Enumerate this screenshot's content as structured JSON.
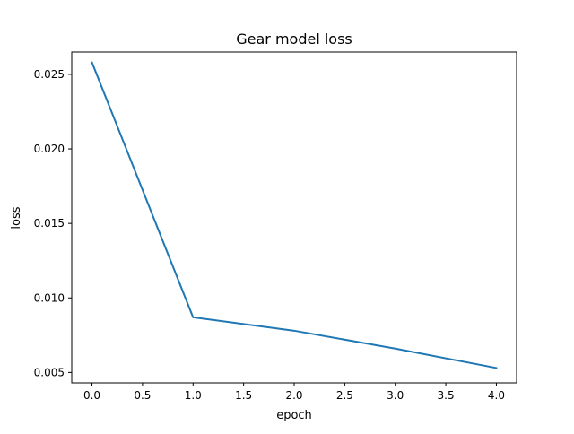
{
  "chart_data": {
    "type": "line",
    "title": "Gear model loss",
    "xlabel": "epoch",
    "ylabel": "loss",
    "xlim": [
      -0.2,
      4.2
    ],
    "ylim": [
      0.0043,
      0.0265
    ],
    "xticks": [
      0.0,
      0.5,
      1.0,
      1.5,
      2.0,
      2.5,
      3.0,
      3.5,
      4.0
    ],
    "xtick_labels": [
      "0.0",
      "0.5",
      "1.0",
      "1.5",
      "2.0",
      "2.5",
      "3.0",
      "3.5",
      "4.0"
    ],
    "yticks": [
      0.005,
      0.01,
      0.015,
      0.02,
      0.025
    ],
    "ytick_labels": [
      "0.005",
      "0.010",
      "0.015",
      "0.020",
      "0.025"
    ],
    "grid": false,
    "legend": "none",
    "series": [
      {
        "color": "#1f77b4",
        "x": [
          0,
          1,
          2,
          3,
          4
        ],
        "y": [
          0.0258,
          0.0087,
          0.0078,
          0.0066,
          0.0053
        ]
      }
    ]
  }
}
